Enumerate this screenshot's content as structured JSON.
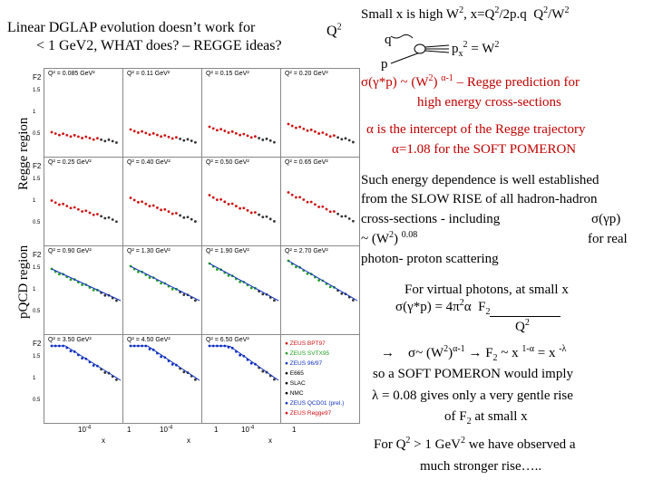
{
  "title_line1": "Linear DGLAP evolution doesn’t work for",
  "title_line2": "< 1 GeV2, WHAT does? – REGGE ideas?",
  "q2_label": "Q2",
  "regge_region": "Regge region",
  "pqcd_region": "pQCD region",
  "kin": {
    "small_x": "Small x is high W2, x=Q2/2p.q  Q2/W2",
    "q": "q",
    "p": "p",
    "px2": "px2 = W2"
  },
  "regge_pred": {
    "line1": "σ(γ*p) ~ (W2) α-1 – Regge prediction for",
    "line2": "high energy cross-sections"
  },
  "alpha": {
    "line1": "α is the intercept of the Regge trajectory",
    "line2": "α=1.08 for the SOFT POMERON"
  },
  "energy": {
    "line1": "Such energy dependence is well established",
    "line2": "from the SLOW RISE of all hadron-hadron",
    "line3": "cross-sections  - including",
    "line3b": "σ(γp)",
    "line4": "~ (W2) 0.08",
    "line4b": "for real",
    "line5": "photon- proton scattering"
  },
  "virtual": {
    "line1": "For virtual photons, at small x",
    "line2": "σ(γ*p) = 4π2α  F2",
    "line3": "Q2"
  },
  "arrow": {
    "line1": "→    σ~ (W2)α-1 → F2 ~ x 1-α = x -λ",
    "line2": "so a SOFT POMERON would imply",
    "line3": "λ = 0.08   gives only a very gentle rise",
    "line4": "of F2 at small x"
  },
  "final": {
    "line1": "For Q2 > 1 GeV2 we have observed a",
    "line2": "much stronger rise….."
  },
  "panels": [
    {
      "label": "Q² = 0.085 GeV²"
    },
    {
      "label": "Q² = 0.11 GeV²"
    },
    {
      "label": "Q² = 0.15 GeV²"
    },
    {
      "label": "Q² = 0.20 GeV²"
    },
    {
      "label": "Q² = 0.25 GeV²"
    },
    {
      "label": "Q² = 0.40 GeV²"
    },
    {
      "label": "Q² = 0.50 GeV²"
    },
    {
      "label": "Q² = 0.65 GeV²"
    },
    {
      "label": "Q² = 0.90 GeV²"
    },
    {
      "label": "Q² = 1.30 GeV²"
    },
    {
      "label": "Q² = 1.90 GeV²"
    },
    {
      "label": "Q² = 2.70 GeV²"
    },
    {
      "label": "Q² = 3.50 GeV²"
    },
    {
      "label": "Q² = 4.50 GeV²"
    },
    {
      "label": "Q² = 6.50 GeV²"
    },
    {
      "label": ""
    }
  ],
  "legend": [
    {
      "text": "ZEUS BPT97",
      "color": "#d01010"
    },
    {
      "text": "ZEUS SVTX95",
      "color": "#20a020"
    },
    {
      "text": "ZEUS 96/97",
      "color": "#1030c0"
    },
    {
      "text": "E665",
      "color": "#000000"
    },
    {
      "text": "SLAC",
      "color": "#000000"
    },
    {
      "text": "NMC",
      "color": "#000000"
    },
    {
      "text": "ZEUS QCD01 (prel.)",
      "color": "#1030c0"
    },
    {
      "text": "ZEUS Regge97",
      "color": "#d01010"
    }
  ],
  "axis": {
    "f2": "F2",
    "x": "x",
    "ten_m4": "10-4",
    "one": "1",
    "ticks": [
      "1.5",
      "1",
      "0.5"
    ]
  }
}
